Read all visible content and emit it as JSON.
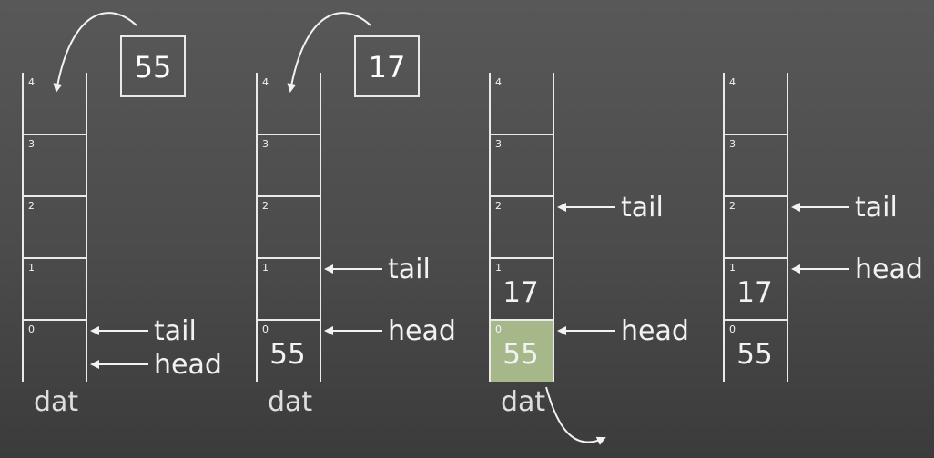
{
  "colors": {
    "stroke": "#eaeaea",
    "text": "#f2f2f2",
    "highlight_fill": "#a6b88a"
  },
  "stacks": [
    {
      "indices": [
        "0",
        "1",
        "2",
        "3",
        "4"
      ],
      "cells": [
        "",
        "",
        "",
        "",
        ""
      ],
      "highlight_index": null,
      "label": "dat",
      "incoming_value": "55",
      "pointers": [
        {
          "name": "tail",
          "slot": "0-upper"
        },
        {
          "name": "head",
          "slot": "0-lower"
        }
      ],
      "outgoing": false
    },
    {
      "indices": [
        "0",
        "1",
        "2",
        "3",
        "4"
      ],
      "cells": [
        "55",
        "",
        "",
        "",
        ""
      ],
      "highlight_index": null,
      "label": "dat",
      "incoming_value": "17",
      "pointers": [
        {
          "name": "tail",
          "slot": "1"
        },
        {
          "name": "head",
          "slot": "0"
        }
      ],
      "outgoing": false
    },
    {
      "indices": [
        "0",
        "1",
        "2",
        "3",
        "4"
      ],
      "cells": [
        "55",
        "17",
        "",
        "",
        ""
      ],
      "highlight_index": 0,
      "label": "dat",
      "incoming_value": null,
      "pointers": [
        {
          "name": "tail",
          "slot": "2"
        },
        {
          "name": "head",
          "slot": "0"
        }
      ],
      "outgoing": true
    },
    {
      "indices": [
        "0",
        "1",
        "2",
        "3",
        "4"
      ],
      "cells": [
        "55",
        "17",
        "",
        "",
        ""
      ],
      "highlight_index": null,
      "label": "",
      "incoming_value": null,
      "pointers": [
        {
          "name": "tail",
          "slot": "2"
        },
        {
          "name": "head",
          "slot": "1"
        }
      ],
      "outgoing": false
    }
  ]
}
